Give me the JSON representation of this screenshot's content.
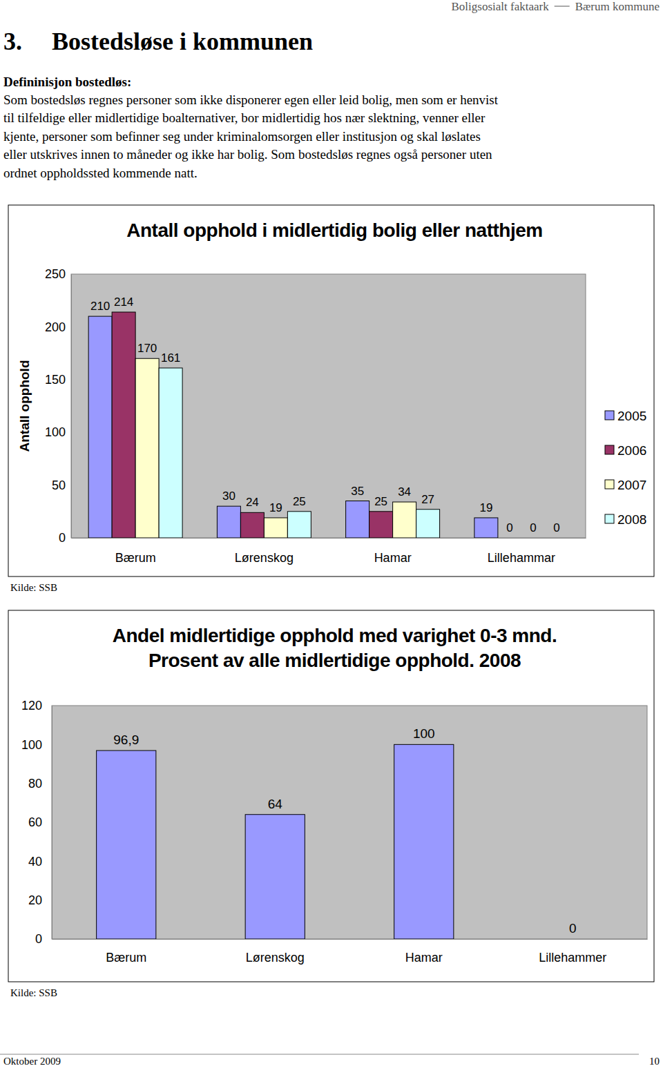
{
  "header": {
    "left": "Boligsosialt faktaark",
    "right": "Bærum kommune"
  },
  "section_number": "3.",
  "section_title": "Bostedsløse i kommunen",
  "definition": {
    "heading": "Defininisjon bostedløs:",
    "lines": [
      "Som bostedsløs regnes personer som ikke disponerer egen eller leid bolig, men som er henvist",
      "til tilfeldige eller midlertidige boalternativer, bor midlertidig hos nær slektning, venner eller",
      "kjente, personer som befinner seg under kriminalomsorgen eller institusjon og skal løslates",
      "eller utskrives innen to måneder og ikke har bolig. Som bostedsløs regnes også personer uten",
      "ordnet oppholdssted kommende natt."
    ]
  },
  "chart_data": [
    {
      "type": "bar",
      "title": "Antall opphold i midlertidig bolig eller natthjem",
      "y_label": "Antall opphold",
      "categories": [
        "Bærum",
        "Lørenskog",
        "Hamar",
        "Lillehammar"
      ],
      "series": [
        {
          "name": "2005",
          "color": "#9999ff",
          "values": [
            210,
            30,
            35,
            19
          ]
        },
        {
          "name": "2006",
          "color": "#993366",
          "values": [
            214,
            24,
            25,
            0
          ]
        },
        {
          "name": "2007",
          "color": "#ffffcc",
          "values": [
            170,
            19,
            34,
            0
          ]
        },
        {
          "name": "2008",
          "color": "#ccffff",
          "values": [
            161,
            25,
            27,
            0
          ]
        }
      ],
      "ylim": [
        0,
        250
      ],
      "yticks": [
        0,
        50,
        100,
        150,
        200,
        250
      ],
      "grid": false,
      "legend": "right",
      "data_labels": true,
      "source": "Kilde: SSB"
    },
    {
      "type": "bar",
      "title": "Andel midlertidige opphold med varighet 0-3 mnd.",
      "subtitle": "Prosent av alle midlertidige opphold. 2008",
      "categories": [
        "Bærum",
        "Lørenskog",
        "Hamar",
        "Lillehammer"
      ],
      "values": [
        96.9,
        64,
        100,
        0
      ],
      "value_labels": [
        "96,9",
        "64",
        "100",
        "0"
      ],
      "color": "#9999ff",
      "ylim": [
        0,
        120
      ],
      "yticks": [
        0,
        20,
        40,
        60,
        80,
        100,
        120
      ],
      "grid": false,
      "data_labels": true,
      "source": "Kilde: SSB"
    }
  ],
  "footer": {
    "date": "Oktober 2009",
    "page": "10"
  }
}
